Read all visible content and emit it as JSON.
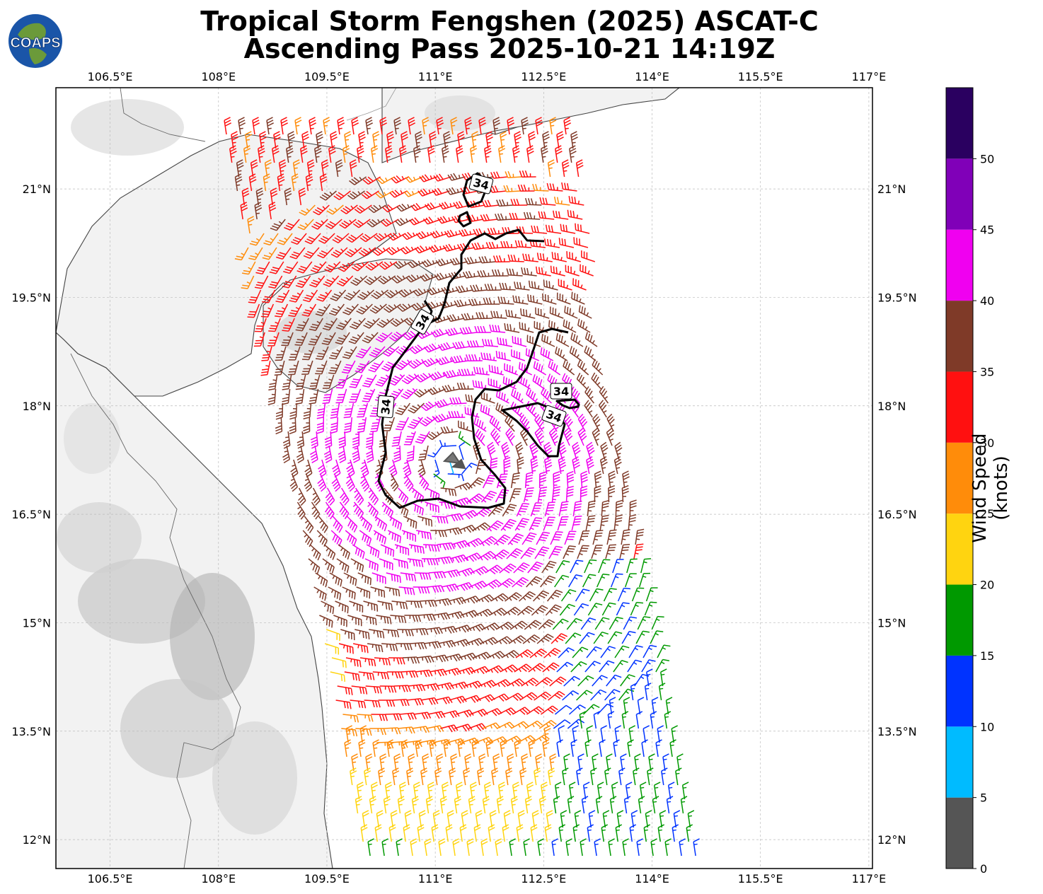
{
  "title": {
    "line1": "Tropical Storm Fengshen (2025) ASCAT-C",
    "line2": "Ascending Pass 2025-10-21 14:19Z"
  },
  "logo": {
    "text": "COAPS",
    "icon": "globe-logo-icon"
  },
  "map": {
    "lon_ticks": [
      "106.5°E",
      "108°E",
      "109.5°E",
      "111°E",
      "112.5°E",
      "114°E",
      "115.5°E",
      "117°E"
    ],
    "lat_ticks": [
      "21°N",
      "19.5°N",
      "18°N",
      "16.5°N",
      "15°N",
      "13.5°N",
      "12°N"
    ],
    "lon_range": [
      105.75,
      117.05
    ],
    "lat_range": [
      11.6,
      22.4
    ],
    "grid": true,
    "contour_label": "34",
    "contour_label_count": 4,
    "background": "grayscale terrain",
    "land_color": "#f4f4f4",
    "coastline_color": "#333333"
  },
  "colorbar": {
    "label": "Wind Speed (knots)",
    "tick_labels": [
      "0",
      "5",
      "10",
      "15",
      "20",
      "25",
      "30",
      "35",
      "40",
      "45",
      "50"
    ],
    "bins": [
      {
        "from": 0,
        "to": 5,
        "color": "#555555"
      },
      {
        "from": 5,
        "to": 10,
        "color": "#00bbff"
      },
      {
        "from": 10,
        "to": 15,
        "color": "#0033ff"
      },
      {
        "from": 15,
        "to": 20,
        "color": "#009900"
      },
      {
        "from": 20,
        "to": 25,
        "color": "#ffd410"
      },
      {
        "from": 25,
        "to": 30,
        "color": "#ff8c0a"
      },
      {
        "from": 30,
        "to": 35,
        "color": "#ff1010"
      },
      {
        "from": 35,
        "to": 40,
        "color": "#7f3a28"
      },
      {
        "from": 40,
        "to": 45,
        "color": "#f000f0"
      },
      {
        "from": 45,
        "to": 50,
        "color": "#8000b8"
      },
      {
        "from": 50,
        "to": 55,
        "color": "#2a0060"
      }
    ]
  }
}
